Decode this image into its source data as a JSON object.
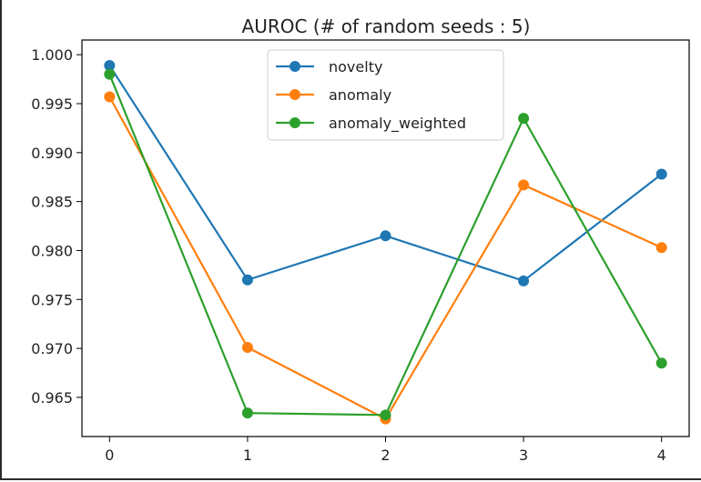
{
  "chart_data": {
    "type": "line",
    "title": "AUROC (# of random seeds : 5)",
    "xlabel": "",
    "ylabel": "",
    "x": [
      0,
      1,
      2,
      3,
      4
    ],
    "x_ticks": [
      "0",
      "1",
      "2",
      "3",
      "4"
    ],
    "y_ticks": [
      "0.965",
      "0.970",
      "0.975",
      "0.980",
      "0.985",
      "0.990",
      "0.995",
      "1.000"
    ],
    "xlim": [
      -0.2,
      4.2
    ],
    "ylim": [
      0.961,
      1.0015
    ],
    "grid": false,
    "legend_position": "upper center",
    "series": [
      {
        "name": "novelty",
        "color": "#1f77b4",
        "values": [
          0.9989,
          0.977,
          0.9815,
          0.9769,
          0.9878
        ]
      },
      {
        "name": "anomaly",
        "color": "#ff7f0e",
        "values": [
          0.9957,
          0.9701,
          0.9628,
          0.9867,
          0.9803
        ]
      },
      {
        "name": "anomaly_weighted",
        "color": "#2ca02c",
        "values": [
          0.998,
          0.9634,
          0.9632,
          0.9935,
          0.9685
        ]
      }
    ]
  }
}
